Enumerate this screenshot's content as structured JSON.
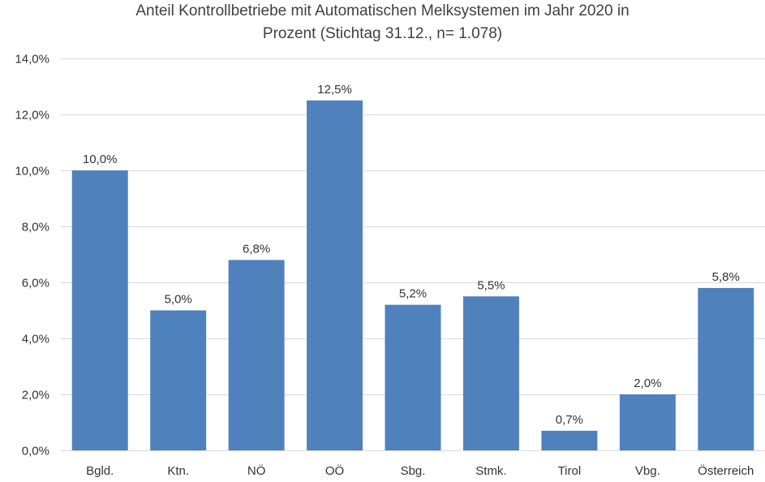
{
  "chart_data": {
    "type": "bar",
    "title_line1": "Anteil Kontrollbetriebe mit Automatischen Melksystemen im Jahr 2020  in",
    "title_line2": "Prozent (Stichtag 31.12., n= 1.078)",
    "categories": [
      "Bgld.",
      "Ktn.",
      "NÖ",
      "OÖ",
      "Sbg.",
      "Stmk.",
      "Tirol",
      "Vbg.",
      "Österreich"
    ],
    "values": [
      10.0,
      5.0,
      6.8,
      12.5,
      5.2,
      5.5,
      0.7,
      2.0,
      5.8
    ],
    "data_labels": [
      "10,0%",
      "5,0%",
      "6,8%",
      "12,5%",
      "5,2%",
      "5,5%",
      "0,7%",
      "2,0%",
      "5,8%"
    ],
    "y_ticks": [
      0,
      2,
      4,
      6,
      8,
      10,
      12,
      14
    ],
    "y_tick_labels": [
      "0,0%",
      "2,0%",
      "4,0%",
      "6,0%",
      "8,0%",
      "10,0%",
      "12,0%",
      "14,0%"
    ],
    "ylim": [
      0,
      14
    ],
    "xlabel": "",
    "ylabel": "",
    "grid": true,
    "bar_color": "#4f81bd",
    "grid_color": "#d9d9d9"
  }
}
